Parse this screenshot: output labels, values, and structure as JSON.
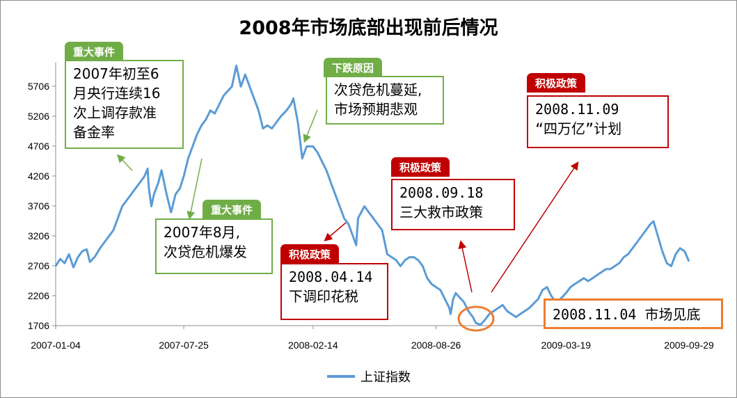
{
  "chart_data": {
    "type": "line",
    "title": "2008年市场底部出现前后情况",
    "legend": "上证指数",
    "legend_position": "bottom",
    "grid": false,
    "y_ticks": [
      1706,
      2206,
      2706,
      3206,
      3706,
      4206,
      4706,
      5206,
      5706
    ],
    "x_ticks": [
      "2007-01-04",
      "2007-07-25",
      "2008-02-14",
      "2008-08-26",
      "2009-03-19",
      "2009-09-29"
    ],
    "ylim": [
      1706,
      6100
    ],
    "xlim": [
      "2007-01-04",
      "2009-09-29"
    ],
    "series": [
      {
        "name": "上证指数",
        "color": "#5b9bd5",
        "points": [
          [
            "2007-01-04",
            2700
          ],
          [
            "2007-01-11",
            2820
          ],
          [
            "2007-01-18",
            2750
          ],
          [
            "2007-01-25",
            2900
          ],
          [
            "2007-02-01",
            2680
          ],
          [
            "2007-02-08",
            2850
          ],
          [
            "2007-02-15",
            2950
          ],
          [
            "2007-02-22",
            2980
          ],
          [
            "2007-02-27",
            2770
          ],
          [
            "2007-03-07",
            2860
          ],
          [
            "2007-03-15",
            3000
          ],
          [
            "2007-03-22",
            3100
          ],
          [
            "2007-03-29",
            3200
          ],
          [
            "2007-04-05",
            3300
          ],
          [
            "2007-04-12",
            3500
          ],
          [
            "2007-04-19",
            3700
          ],
          [
            "2007-04-26",
            3800
          ],
          [
            "2007-05-10",
            4000
          ],
          [
            "2007-05-17",
            4100
          ],
          [
            "2007-05-24",
            4200
          ],
          [
            "2007-05-29",
            4330
          ],
          [
            "2007-05-31",
            4000
          ],
          [
            "2007-06-04",
            3700
          ],
          [
            "2007-06-08",
            3900
          ],
          [
            "2007-06-15",
            4100
          ],
          [
            "2007-06-20",
            4300
          ],
          [
            "2007-06-28",
            3900
          ],
          [
            "2007-07-05",
            3600
          ],
          [
            "2007-07-12",
            3900
          ],
          [
            "2007-07-19",
            4000
          ],
          [
            "2007-07-25",
            4200
          ],
          [
            "2007-08-01",
            4500
          ],
          [
            "2007-08-08",
            4700
          ],
          [
            "2007-08-15",
            4900
          ],
          [
            "2007-08-22",
            5050
          ],
          [
            "2007-08-29",
            5150
          ],
          [
            "2007-09-05",
            5300
          ],
          [
            "2007-09-12",
            5250
          ],
          [
            "2007-09-19",
            5400
          ],
          [
            "2007-09-26",
            5550
          ],
          [
            "2007-10-09",
            5700
          ],
          [
            "2007-10-16",
            6050
          ],
          [
            "2007-10-23",
            5700
          ],
          [
            "2007-10-30",
            5900
          ],
          [
            "2007-11-06",
            5700
          ],
          [
            "2007-11-13",
            5500
          ],
          [
            "2007-11-20",
            5300
          ],
          [
            "2007-11-27",
            5000
          ],
          [
            "2007-12-04",
            5050
          ],
          [
            "2007-12-11",
            5000
          ],
          [
            "2007-12-18",
            5100
          ],
          [
            "2007-12-25",
            5200
          ],
          [
            "2008-01-03",
            5300
          ],
          [
            "2008-01-10",
            5400
          ],
          [
            "2008-01-14",
            5500
          ],
          [
            "2008-01-21",
            5100
          ],
          [
            "2008-01-28",
            4500
          ],
          [
            "2008-02-04",
            4700
          ],
          [
            "2008-02-14",
            4700
          ],
          [
            "2008-02-21",
            4600
          ],
          [
            "2008-02-28",
            4450
          ],
          [
            "2008-03-06",
            4300
          ],
          [
            "2008-03-13",
            4100
          ],
          [
            "2008-03-20",
            3900
          ],
          [
            "2008-03-27",
            3700
          ],
          [
            "2008-04-03",
            3500
          ],
          [
            "2008-04-10",
            3400
          ],
          [
            "2008-04-17",
            3200
          ],
          [
            "2008-04-22",
            3050
          ],
          [
            "2008-04-25",
            3500
          ],
          [
            "2008-05-05",
            3700
          ],
          [
            "2008-05-12",
            3600
          ],
          [
            "2008-05-19",
            3500
          ],
          [
            "2008-05-26",
            3400
          ],
          [
            "2008-06-02",
            3300
          ],
          [
            "2008-06-10",
            2900
          ],
          [
            "2008-06-17",
            2850
          ],
          [
            "2008-06-24",
            2800
          ],
          [
            "2008-07-01",
            2700
          ],
          [
            "2008-07-08",
            2800
          ],
          [
            "2008-07-15",
            2850
          ],
          [
            "2008-07-22",
            2850
          ],
          [
            "2008-07-29",
            2800
          ],
          [
            "2008-08-05",
            2700
          ],
          [
            "2008-08-12",
            2500
          ],
          [
            "2008-08-19",
            2400
          ],
          [
            "2008-08-26",
            2350
          ],
          [
            "2008-09-02",
            2300
          ],
          [
            "2008-09-09",
            2150
          ],
          [
            "2008-09-16",
            2000
          ],
          [
            "2008-09-18",
            1900
          ],
          [
            "2008-09-22",
            2150
          ],
          [
            "2008-09-26",
            2250
          ],
          [
            "2008-10-09",
            2100
          ],
          [
            "2008-10-16",
            1950
          ],
          [
            "2008-10-23",
            1850
          ],
          [
            "2008-10-28",
            1750
          ],
          [
            "2008-11-04",
            1720
          ],
          [
            "2008-11-11",
            1800
          ],
          [
            "2008-11-18",
            1900
          ],
          [
            "2008-11-25",
            1950
          ],
          [
            "2008-12-02",
            2000
          ],
          [
            "2008-12-09",
            2050
          ],
          [
            "2008-12-16",
            1950
          ],
          [
            "2008-12-23",
            1900
          ],
          [
            "2008-12-30",
            1850
          ],
          [
            "2009-01-06",
            1900
          ],
          [
            "2009-01-13",
            1950
          ],
          [
            "2009-01-20",
            2000
          ],
          [
            "2009-02-03",
            2150
          ],
          [
            "2009-02-10",
            2300
          ],
          [
            "2009-02-17",
            2350
          ],
          [
            "2009-02-24",
            2200
          ],
          [
            "2009-03-03",
            2100
          ],
          [
            "2009-03-10",
            2150
          ],
          [
            "2009-03-19",
            2250
          ],
          [
            "2009-03-26",
            2350
          ],
          [
            "2009-04-02",
            2400
          ],
          [
            "2009-04-09",
            2450
          ],
          [
            "2009-04-16",
            2500
          ],
          [
            "2009-04-23",
            2450
          ],
          [
            "2009-04-30",
            2500
          ],
          [
            "2009-05-07",
            2550
          ],
          [
            "2009-05-14",
            2600
          ],
          [
            "2009-05-21",
            2650
          ],
          [
            "2009-05-28",
            2650
          ],
          [
            "2009-06-04",
            2700
          ],
          [
            "2009-06-11",
            2750
          ],
          [
            "2009-06-18",
            2850
          ],
          [
            "2009-06-25",
            2900
          ],
          [
            "2009-07-02",
            3000
          ],
          [
            "2009-07-09",
            3100
          ],
          [
            "2009-07-16",
            3200
          ],
          [
            "2009-07-23",
            3300
          ],
          [
            "2009-07-30",
            3400
          ],
          [
            "2009-08-04",
            3450
          ],
          [
            "2009-08-11",
            3200
          ],
          [
            "2009-08-18",
            2950
          ],
          [
            "2009-08-25",
            2750
          ],
          [
            "2009-09-01",
            2700
          ],
          [
            "2009-09-08",
            2900
          ],
          [
            "2009-09-15",
            3000
          ],
          [
            "2009-09-22",
            2950
          ],
          [
            "2009-09-29",
            2780
          ]
        ]
      }
    ]
  },
  "annotations": {
    "a1": {
      "tag": "重大事件",
      "text": "2007年初至6\n月央行连续16\n次上调存款准\n备金率"
    },
    "a2": {
      "tag": "重大事件",
      "text": "2007年8月,\n次贷危机爆发"
    },
    "a3": {
      "tag": "下跌原因",
      "text": "次贷危机蔓延,\n市场预期悲观"
    },
    "a4": {
      "tag": "积极政策",
      "text": "2008.04.14\n下调印花税"
    },
    "a5": {
      "tag": "积极政策",
      "text": "2008.09.18\n三大救市政策"
    },
    "a6": {
      "tag": "积极政策",
      "text": "2008.11.09\n“四万亿”计划"
    },
    "a7": {
      "text": "2008.11.04 市场见底"
    }
  },
  "colors": {
    "line": "#5b9bd5",
    "green": "#70ad47",
    "red": "#c00000",
    "orange": "#ed7d31"
  }
}
